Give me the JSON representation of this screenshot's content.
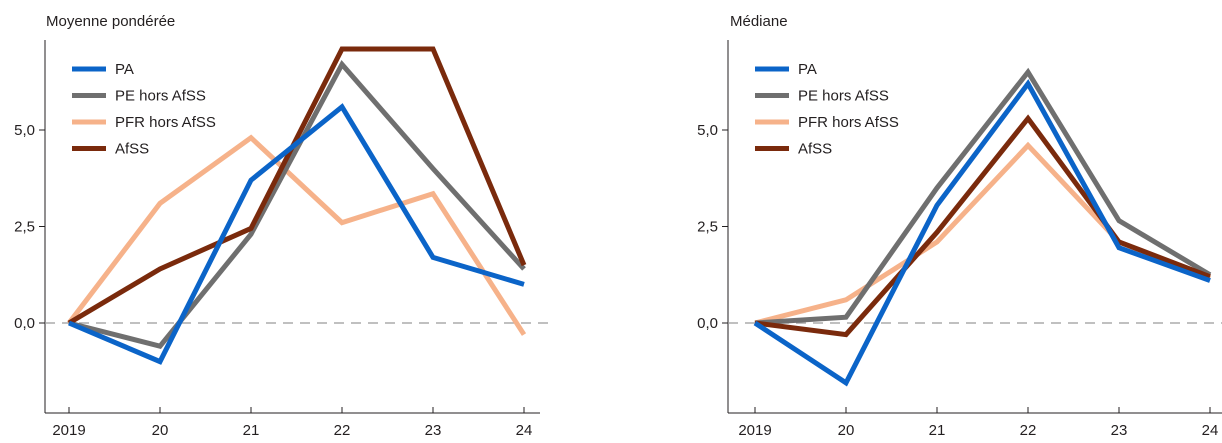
{
  "colors": {
    "PA": "#0b64c8",
    "PE hors AfSS": "#6f6f6f",
    "PFR hors AfSS": "#f6b28a",
    "AfSS": "#7a2a0c",
    "zero_line": "#9a9a9a",
    "axis": "#231f20"
  },
  "chart_data": [
    {
      "type": "line",
      "title": "Moyenne pondérée",
      "categories": [
        "2019",
        "20",
        "21",
        "22",
        "23",
        "24"
      ],
      "ylim": [
        -2.5,
        7.2
      ],
      "yticks": [
        "0,0",
        "2,5",
        "5,0"
      ],
      "ytick_values": [
        0,
        2.5,
        5
      ],
      "zero_line": "dashed",
      "legend_position": "top-left",
      "series": [
        {
          "name": "PA",
          "values": [
            0,
            -1.0,
            3.7,
            5.6,
            1.7,
            1.0
          ]
        },
        {
          "name": "PE hors AfSS",
          "values": [
            0,
            -0.6,
            2.3,
            6.7,
            4.0,
            1.4
          ]
        },
        {
          "name": "PFR hors AfSS",
          "values": [
            0,
            3.1,
            4.8,
            2.6,
            3.35,
            -0.3
          ]
        },
        {
          "name": "AfSS",
          "values": [
            0,
            1.4,
            2.45,
            7.1,
            7.1,
            1.5
          ]
        }
      ]
    },
    {
      "type": "line",
      "title": "Médiane",
      "categories": [
        "2019",
        "20",
        "21",
        "22",
        "23",
        "24"
      ],
      "ylim": [
        -2.5,
        7.2
      ],
      "yticks": [
        "0,0",
        "2,5",
        "5,0"
      ],
      "ytick_values": [
        0,
        2.5,
        5
      ],
      "zero_line": "dashed",
      "legend_position": "top-left",
      "series": [
        {
          "name": "PA",
          "values": [
            0,
            -1.55,
            3.05,
            6.2,
            1.95,
            1.1
          ]
        },
        {
          "name": "PE hors AfSS",
          "values": [
            0,
            0.15,
            3.5,
            6.5,
            2.65,
            1.25
          ]
        },
        {
          "name": "PFR hors AfSS",
          "values": [
            0,
            0.6,
            2.1,
            4.6,
            2.1,
            1.15
          ]
        },
        {
          "name": "AfSS",
          "values": [
            0,
            -0.3,
            2.35,
            5.3,
            2.1,
            1.2
          ]
        }
      ]
    }
  ]
}
